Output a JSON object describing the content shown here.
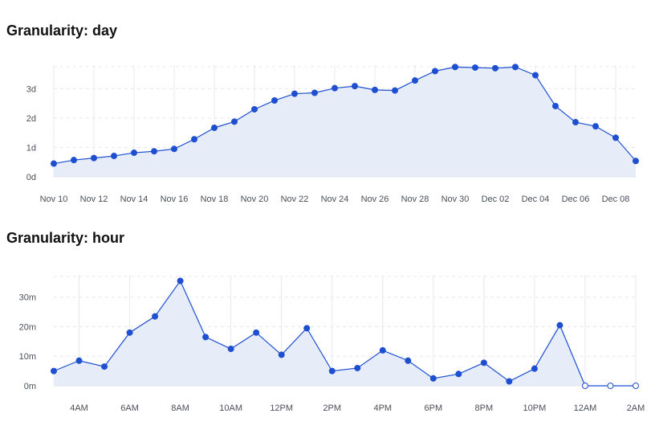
{
  "chart_data": [
    {
      "type": "area",
      "title": "Granularity: day",
      "xlabel": "",
      "ylabel": "",
      "ylim": [
        0,
        3.75
      ],
      "y_ticks": [
        {
          "value": 0,
          "label": "0d"
        },
        {
          "value": 1,
          "label": "1d"
        },
        {
          "value": 2,
          "label": "2d"
        },
        {
          "value": 3,
          "label": "3d"
        }
      ],
      "x_ticks": [
        "Nov 10",
        "Nov 12",
        "Nov 14",
        "Nov 16",
        "Nov 18",
        "Nov 20",
        "Nov 22",
        "Nov 24",
        "Nov 26",
        "Nov 28",
        "Nov 30",
        "Dec 02",
        "Dec 04",
        "Dec 06",
        "Dec 08"
      ],
      "grid": true,
      "colors": {
        "line": "#1f4fd1",
        "fill": "#e6edf9",
        "grid": "#e6e8ee"
      },
      "x": [
        "Nov 10",
        "Nov 11",
        "Nov 12",
        "Nov 13",
        "Nov 14",
        "Nov 15",
        "Nov 16",
        "Nov 17",
        "Nov 18",
        "Nov 19",
        "Nov 20",
        "Nov 21",
        "Nov 22",
        "Nov 23",
        "Nov 24",
        "Nov 25",
        "Nov 26",
        "Nov 27",
        "Nov 28",
        "Nov 29",
        "Nov 30",
        "Dec 01",
        "Dec 02",
        "Dec 03",
        "Dec 04",
        "Dec 05",
        "Dec 06",
        "Dec 07",
        "Dec 08",
        "Dec 09"
      ],
      "values": [
        0.45,
        0.57,
        0.64,
        0.71,
        0.82,
        0.87,
        0.95,
        1.28,
        1.67,
        1.88,
        2.3,
        2.6,
        2.83,
        2.86,
        3.02,
        3.09,
        2.96,
        2.94,
        3.28,
        3.6,
        3.74,
        3.72,
        3.7,
        3.74,
        3.46,
        2.41,
        1.86,
        1.72,
        1.33,
        0.54
      ],
      "hollow": []
    },
    {
      "type": "area",
      "title": "Granularity: hour",
      "xlabel": "",
      "ylabel": "",
      "ylim": [
        0,
        37
      ],
      "y_ticks": [
        {
          "value": 0,
          "label": "0m"
        },
        {
          "value": 10,
          "label": "10m"
        },
        {
          "value": 20,
          "label": "20m"
        },
        {
          "value": 30,
          "label": "30m"
        }
      ],
      "x_ticks": [
        "4AM",
        "6AM",
        "8AM",
        "10AM",
        "12PM",
        "2PM",
        "4PM",
        "6PM",
        "8PM",
        "10PM",
        "12AM",
        "2AM"
      ],
      "grid": true,
      "colors": {
        "line": "#1f4fd1",
        "fill": "#e6edf9",
        "grid": "#e6e8ee"
      },
      "x": [
        "3AM",
        "4AM",
        "5AM",
        "6AM",
        "7AM",
        "8AM",
        "9AM",
        "10AM",
        "11AM",
        "12PM",
        "1PM",
        "2PM",
        "3PM",
        "4PM",
        "5PM",
        "6PM",
        "7PM",
        "8PM",
        "9PM",
        "10PM",
        "11PM",
        "12AM",
        "1AM",
        "2AM"
      ],
      "values": [
        5,
        8.5,
        6.5,
        18,
        23.5,
        35.5,
        16.5,
        12.5,
        18,
        10.5,
        19.5,
        5,
        6,
        12,
        8.5,
        2.5,
        4,
        7.8,
        1.5,
        5.8,
        20.5,
        0,
        0,
        0
      ],
      "hollow": [
        "12AM",
        "1AM",
        "2AM"
      ]
    }
  ]
}
